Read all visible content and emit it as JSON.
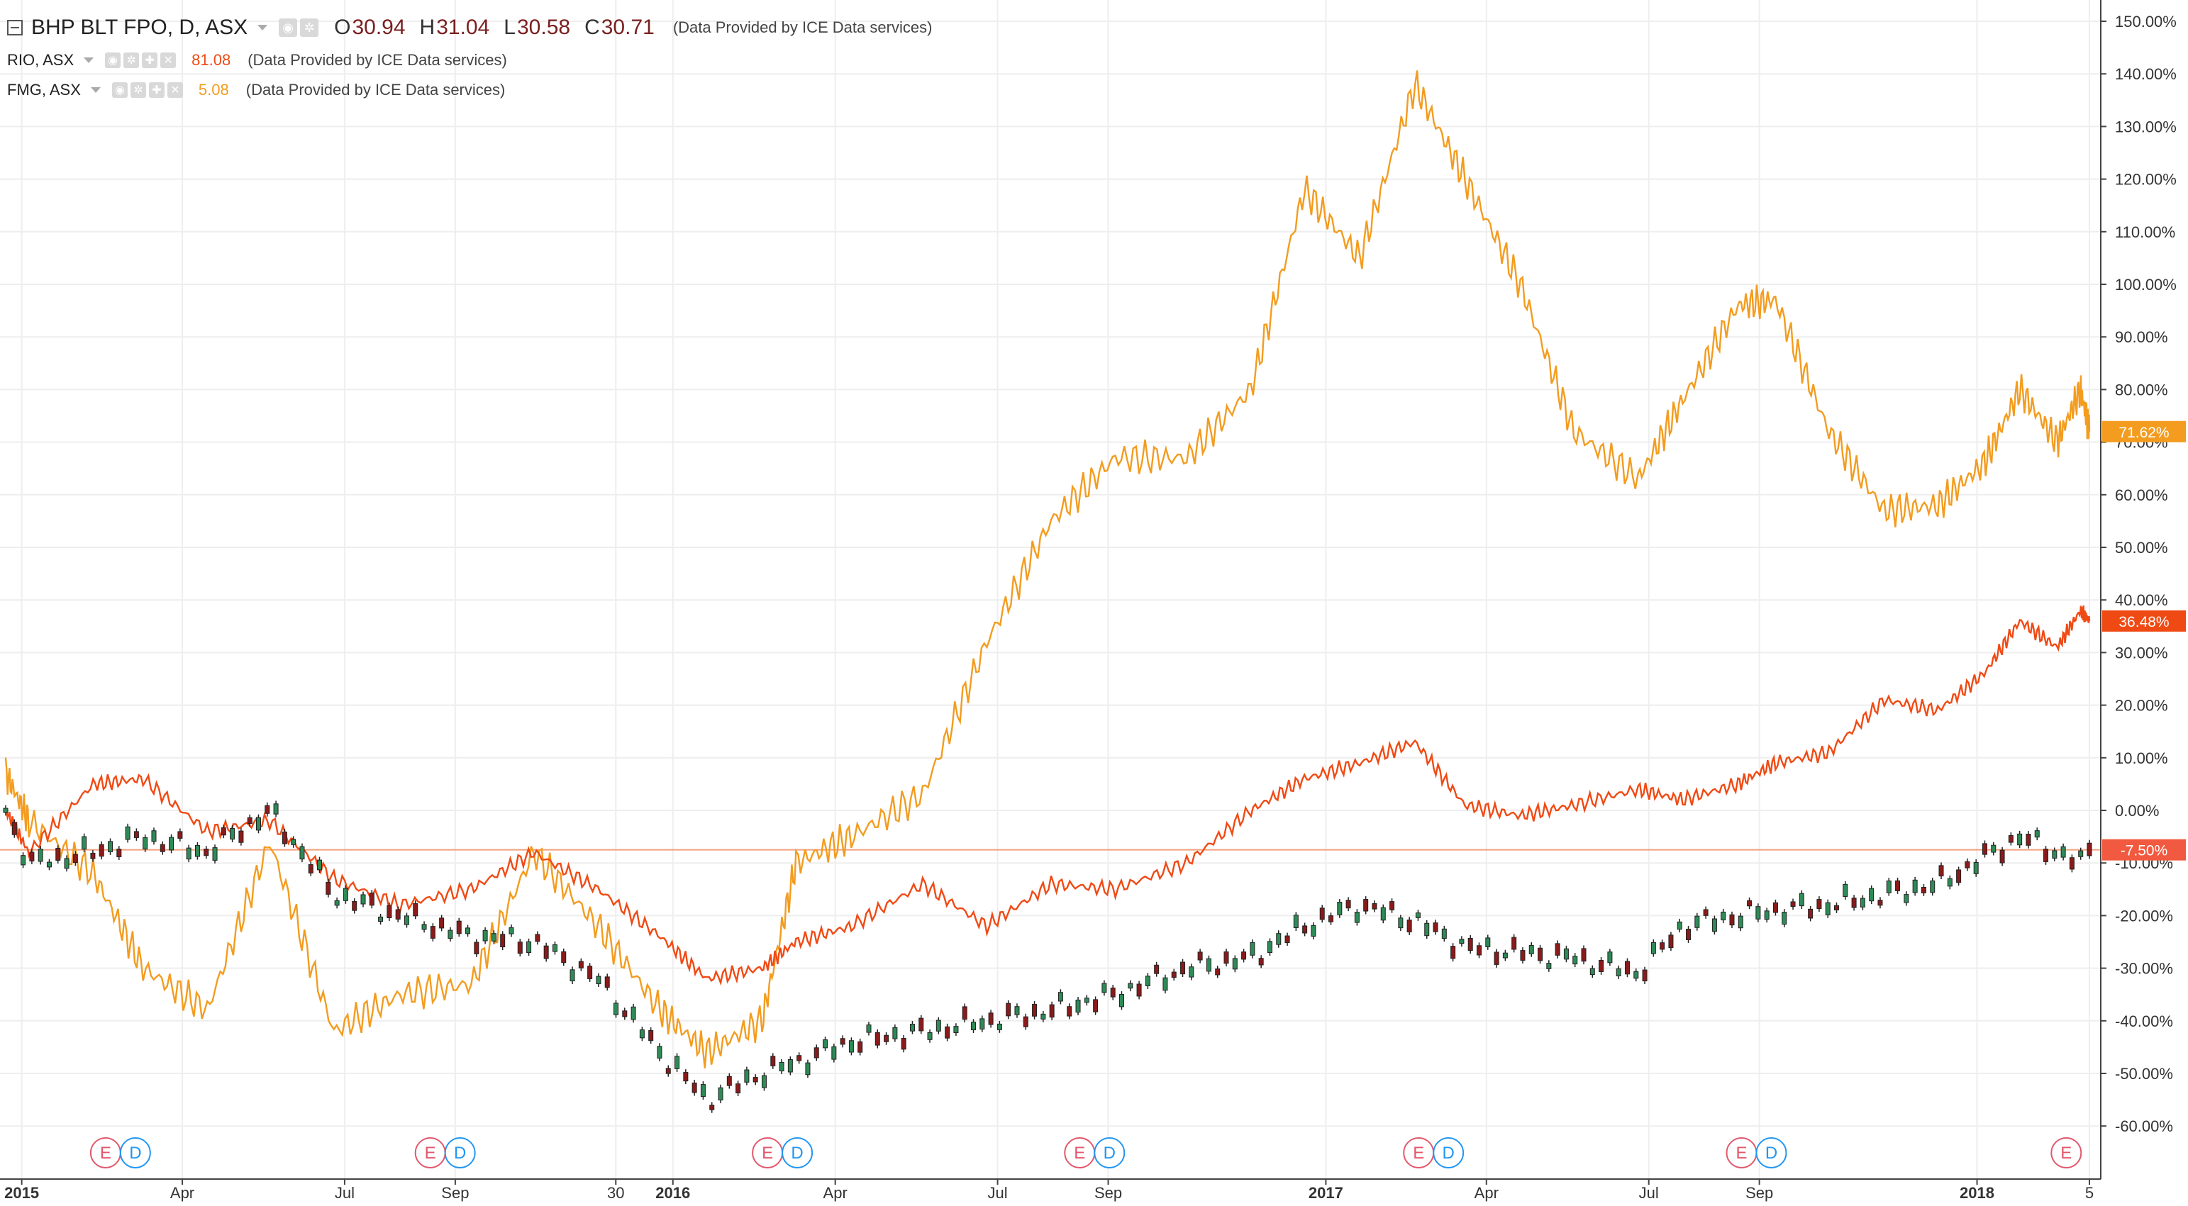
{
  "header": {
    "symbol": "BHP BLT FPO, D, ASX",
    "open_label": "O",
    "open_value": "30.94",
    "high_label": "H",
    "high_value": "31.04",
    "low_label": "L",
    "low_value": "30.58",
    "close_label": "C",
    "close_value": "30.71",
    "provider_note": "(Data Provided by ICE Data services)"
  },
  "legend": [
    {
      "symbol": "RIO, ASX",
      "value": "81.08",
      "color": "#f04a14",
      "note": "(Data Provided by ICE Data services)"
    },
    {
      "symbol": "FMG, ASX",
      "value": "5.08",
      "color": "#f39c1f",
      "note": "(Data Provided by ICE Data services)"
    }
  ],
  "colors": {
    "rio": "#f04a14",
    "fmg": "#f39c1f",
    "up": "#2e8b57",
    "down": "#8b1a1a",
    "grid": "#eeeeee",
    "bhp_line": "#f3a07a"
  },
  "icons": [
    "eye-icon",
    "gear-icon",
    "plus-icon",
    "close-icon"
  ],
  "chart_data": {
    "type": "line",
    "title": "",
    "xlabel": "",
    "ylabel": "",
    "y_unit": "%",
    "ylim": [
      -62,
      152
    ],
    "grid": true,
    "x_ticks": [
      "2015",
      "Apr",
      "Jul",
      "Sep",
      "30",
      "2016",
      "Apr",
      "Jul",
      "Sep",
      "2017",
      "Apr",
      "Jul",
      "Sep",
      "2018",
      "5"
    ],
    "y_ticks": [
      "150.00%",
      "140.00%",
      "130.00%",
      "120.00%",
      "110.00%",
      "100.00%",
      "90.00%",
      "80.00%",
      "70.00%",
      "60.00%",
      "50.00%",
      "40.00%",
      "30.00%",
      "20.00%",
      "10.00%",
      "0.00%",
      "-10.00%",
      "-20.00%",
      "-30.00%",
      "-40.00%",
      "-50.00%",
      "-60.00%"
    ],
    "x_dates": [
      "2014-12-23",
      "2015-01-05",
      "2015-02-10",
      "2015-03-10",
      "2015-04-15",
      "2015-05-20",
      "2015-06-25",
      "2015-08-01",
      "2015-09-10",
      "2015-10-15",
      "2015-11-20",
      "2015-12-25",
      "2016-01-20",
      "2016-02-20",
      "2016-03-10",
      "2016-04-10",
      "2016-05-20",
      "2016-06-25",
      "2016-07-31",
      "2016-09-05",
      "2016-10-15",
      "2016-11-20",
      "2016-12-20",
      "2017-01-20",
      "2017-02-20",
      "2017-03-20",
      "2017-04-20",
      "2017-05-20",
      "2017-06-25",
      "2017-07-20",
      "2017-08-20",
      "2017-09-10",
      "2017-10-10",
      "2017-11-10",
      "2017-12-10",
      "2018-01-05",
      "2018-01-25",
      "2018-02-15",
      "2018-02-28",
      "2018-03-05"
    ],
    "series": [
      {
        "name": "FMG, ASX",
        "color": "#f39c1f",
        "values": [
          7,
          -2,
          -12,
          -30,
          -38,
          -6,
          -42,
          -35,
          -33,
          -8,
          -22,
          -38,
          -46,
          -40,
          -10,
          -5,
          3,
          32,
          55,
          67,
          67,
          80,
          118,
          105,
          138,
          120,
          100,
          72,
          63,
          78,
          96,
          97,
          72,
          57,
          58,
          66,
          80,
          70,
          80,
          72
        ]
      },
      {
        "name": "RIO, ASX",
        "color": "#f04a14",
        "values": [
          0,
          -8,
          5,
          6,
          -4,
          -2,
          -13,
          -18,
          -15,
          -8,
          -15,
          -24,
          -32,
          -30,
          -25,
          -22,
          -14,
          -22,
          -14,
          -15,
          -10,
          0,
          6,
          9,
          13,
          1,
          -1,
          1,
          4,
          2,
          5,
          9,
          11,
          21,
          19,
          26,
          36,
          31,
          38,
          36
        ]
      },
      {
        "name": "BHP BLT FPO",
        "values": [
          0,
          -10,
          -8,
          -5,
          -8,
          0,
          -16,
          -20,
          -24,
          -25,
          -32,
          -46,
          -55,
          -50,
          -48,
          -44,
          -42,
          -40,
          -38,
          -35,
          -30,
          -28,
          -22,
          -18,
          -21,
          -26,
          -27,
          -28,
          -31,
          -22,
          -20,
          -19,
          -18,
          -16,
          -14,
          -9,
          -5,
          -8,
          -10,
          -7.5
        ]
      }
    ],
    "last_values": {
      "FMG, ASX": "71.62%",
      "RIO, ASX": "36.48%",
      "BHP BLT FPO": "-7.50%"
    },
    "event_markers": [
      {
        "date": "2015-02-17",
        "labels": [
          "E",
          "D"
        ]
      },
      {
        "date": "2015-08-18",
        "labels": [
          "E",
          "D"
        ]
      },
      {
        "date": "2016-02-23",
        "labels": [
          "E",
          "D"
        ]
      },
      {
        "date": "2016-08-16",
        "labels": [
          "E",
          "D"
        ]
      },
      {
        "date": "2017-02-22",
        "labels": [
          "E",
          "D"
        ]
      },
      {
        "date": "2017-08-22",
        "labels": [
          "E",
          "D"
        ]
      },
      {
        "date": "2018-02-20",
        "labels": [
          "E"
        ]
      }
    ]
  }
}
